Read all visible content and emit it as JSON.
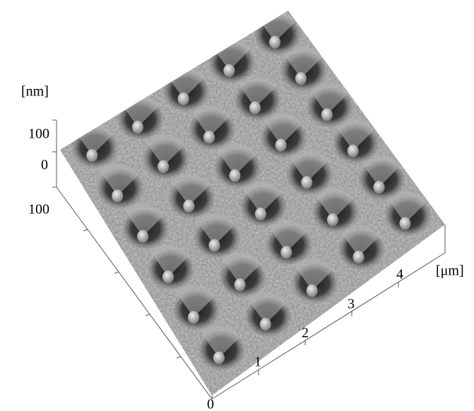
{
  "z_axis": {
    "label": "[nm]",
    "ticks": [
      "100",
      "0",
      "100"
    ]
  },
  "x_axis": {
    "label": "[μm]",
    "ticks": [
      "0",
      "1",
      "2",
      "3",
      "4"
    ]
  }
}
